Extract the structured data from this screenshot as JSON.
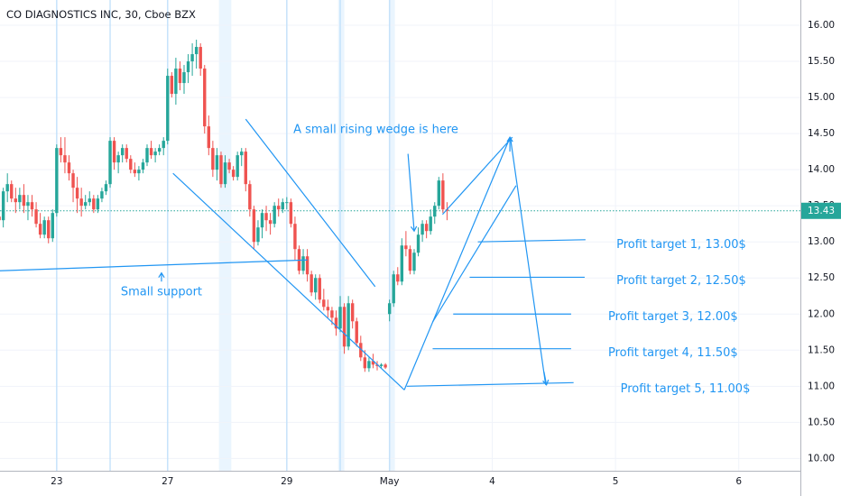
{
  "chart_data": {
    "type": "candlestick",
    "title": "CO DIAGNOSTICS INC, 30, Cboe BZX",
    "x_ticks": [
      {
        "label": "23",
        "bar": 14
      },
      {
        "label": "27",
        "bar": 41
      },
      {
        "label": "29",
        "bar": 70
      },
      {
        "label": "May",
        "bar": 95
      },
      {
        "label": "4",
        "bar": 120
      },
      {
        "label": "5",
        "bar": 150
      },
      {
        "label": "6",
        "bar": 180
      }
    ],
    "y_ticks": [
      10.0,
      10.5,
      11.0,
      11.5,
      12.0,
      12.5,
      13.0,
      13.5,
      14.0,
      14.5,
      15.0,
      15.5,
      16.0
    ],
    "ylim": [
      9.83,
      16.35
    ],
    "xlim": [
      0.2,
      195
    ],
    "grid": true,
    "session_breaks": [
      14,
      27,
      41,
      70,
      83,
      95
    ],
    "highlighted_bands": [
      [
        53.5,
        56.5
      ],
      [
        82.5,
        84
      ],
      [
        95,
        96.3
      ]
    ],
    "last_price": 13.43,
    "last_price_color": "#26a69a",
    "up_color": "#26a69a",
    "down_color": "#ef5350",
    "annotation_color": "#2196f3",
    "bars": [
      [
        13.35,
        13.42,
        13.25,
        13.3
      ],
      [
        13.3,
        13.75,
        13.2,
        13.7
      ],
      [
        13.7,
        13.95,
        13.55,
        13.8
      ],
      [
        13.8,
        13.85,
        13.55,
        13.6
      ],
      [
        13.6,
        13.75,
        13.4,
        13.55
      ],
      [
        13.55,
        13.75,
        13.45,
        13.65
      ],
      [
        13.65,
        13.8,
        13.4,
        13.5
      ],
      [
        13.5,
        13.65,
        13.3,
        13.55
      ],
      [
        13.55,
        13.65,
        13.35,
        13.45
      ],
      [
        13.45,
        13.55,
        13.2,
        13.25
      ],
      [
        13.25,
        13.4,
        13.05,
        13.1
      ],
      [
        13.1,
        13.35,
        13.05,
        13.3
      ],
      [
        13.3,
        13.35,
        12.98,
        13.05
      ],
      [
        13.05,
        13.45,
        13.0,
        13.4
      ],
      [
        13.4,
        14.35,
        13.35,
        14.3
      ],
      [
        14.3,
        14.45,
        14.1,
        14.2
      ],
      [
        14.2,
        14.45,
        13.95,
        14.1
      ],
      [
        14.1,
        14.2,
        13.85,
        13.95
      ],
      [
        13.95,
        14.0,
        13.55,
        13.75
      ],
      [
        13.75,
        13.9,
        13.4,
        13.6
      ],
      [
        13.6,
        13.75,
        13.35,
        13.5
      ],
      [
        13.5,
        13.65,
        13.45,
        13.55
      ],
      [
        13.55,
        13.7,
        13.5,
        13.6
      ],
      [
        13.6,
        13.65,
        13.4,
        13.45
      ],
      [
        13.45,
        13.65,
        13.4,
        13.6
      ],
      [
        13.6,
        13.75,
        13.55,
        13.7
      ],
      [
        13.7,
        13.85,
        13.65,
        13.8
      ],
      [
        13.8,
        14.45,
        13.75,
        14.4
      ],
      [
        14.4,
        14.45,
        14.0,
        14.1
      ],
      [
        14.1,
        14.25,
        13.95,
        14.2
      ],
      [
        14.2,
        14.35,
        14.1,
        14.3
      ],
      [
        14.3,
        14.35,
        14.1,
        14.15
      ],
      [
        14.15,
        14.2,
        13.95,
        14.0
      ],
      [
        14.0,
        14.1,
        13.9,
        13.95
      ],
      [
        13.95,
        14.05,
        13.85,
        14.0
      ],
      [
        14.0,
        14.15,
        13.95,
        14.1
      ],
      [
        14.1,
        14.35,
        14.05,
        14.3
      ],
      [
        14.3,
        14.4,
        14.15,
        14.2
      ],
      [
        14.2,
        14.3,
        14.1,
        14.25
      ],
      [
        14.25,
        14.35,
        14.2,
        14.3
      ],
      [
        14.3,
        14.45,
        14.2,
        14.4
      ],
      [
        14.4,
        15.4,
        14.35,
        15.3
      ],
      [
        15.3,
        15.35,
        15.0,
        15.05
      ],
      [
        15.05,
        15.55,
        14.9,
        15.4
      ],
      [
        15.4,
        15.5,
        15.1,
        15.2
      ],
      [
        15.2,
        15.45,
        15.05,
        15.35
      ],
      [
        15.35,
        15.6,
        15.2,
        15.5
      ],
      [
        15.5,
        15.75,
        15.3,
        15.6
      ],
      [
        15.6,
        15.8,
        15.4,
        15.7
      ],
      [
        15.7,
        15.75,
        15.3,
        15.4
      ],
      [
        15.4,
        15.45,
        14.5,
        14.6
      ],
      [
        14.6,
        14.75,
        14.2,
        14.3
      ],
      [
        14.3,
        14.4,
        13.9,
        14.0
      ],
      [
        14.0,
        14.3,
        13.85,
        14.2
      ],
      [
        14.2,
        14.25,
        13.75,
        13.8
      ],
      [
        13.8,
        14.2,
        13.75,
        14.1
      ],
      [
        14.1,
        14.15,
        13.95,
        14.0
      ],
      [
        14.0,
        14.05,
        13.85,
        13.9
      ],
      [
        13.9,
        14.25,
        13.85,
        14.2
      ],
      [
        14.2,
        14.3,
        14.05,
        14.25
      ],
      [
        14.25,
        14.3,
        13.7,
        13.8
      ],
      [
        13.8,
        13.85,
        13.35,
        13.45
      ],
      [
        13.45,
        13.5,
        12.9,
        13.0
      ],
      [
        13.0,
        13.3,
        12.95,
        13.2
      ],
      [
        13.2,
        13.45,
        13.05,
        13.4
      ],
      [
        13.4,
        13.5,
        13.15,
        13.3
      ],
      [
        13.3,
        13.4,
        13.1,
        13.25
      ],
      [
        13.25,
        13.55,
        13.2,
        13.5
      ],
      [
        13.5,
        13.6,
        13.35,
        13.45
      ],
      [
        13.45,
        13.6,
        13.4,
        13.55
      ],
      [
        13.55,
        13.62,
        13.45,
        13.55
      ],
      [
        13.55,
        13.6,
        13.2,
        13.25
      ],
      [
        13.25,
        13.35,
        12.75,
        12.9
      ],
      [
        12.9,
        12.95,
        12.55,
        12.6
      ],
      [
        12.6,
        12.9,
        12.55,
        12.8
      ],
      [
        12.8,
        12.9,
        12.45,
        12.55
      ],
      [
        12.55,
        12.6,
        12.25,
        12.3
      ],
      [
        12.3,
        12.55,
        12.2,
        12.5
      ],
      [
        12.5,
        12.55,
        12.15,
        12.2
      ],
      [
        12.2,
        12.35,
        12.05,
        12.1
      ],
      [
        12.1,
        12.2,
        11.95,
        12.05
      ],
      [
        12.05,
        12.1,
        11.85,
        11.95
      ],
      [
        11.95,
        12.05,
        11.7,
        11.8
      ],
      [
        11.8,
        12.25,
        11.75,
        12.1
      ],
      [
        12.1,
        12.15,
        11.45,
        11.55
      ],
      [
        11.55,
        12.25,
        11.5,
        12.15
      ],
      [
        12.15,
        12.2,
        11.8,
        11.9
      ],
      [
        11.9,
        11.95,
        11.55,
        11.6
      ],
      [
        11.6,
        11.7,
        11.35,
        11.4
      ],
      [
        11.4,
        11.5,
        11.2,
        11.25
      ],
      [
        11.25,
        11.4,
        11.2,
        11.35
      ],
      [
        11.35,
        11.45,
        11.25,
        11.3
      ],
      [
        11.3,
        11.35,
        11.22,
        11.28
      ],
      [
        11.28,
        11.32,
        11.25,
        11.3
      ],
      [
        11.3,
        11.32,
        11.24,
        11.26
      ],
      [
        12.0,
        12.2,
        11.9,
        12.15
      ],
      [
        12.15,
        12.6,
        12.1,
        12.55
      ],
      [
        12.55,
        12.65,
        12.4,
        12.45
      ],
      [
        12.45,
        13.05,
        12.4,
        12.95
      ],
      [
        12.95,
        13.15,
        12.8,
        12.9
      ],
      [
        12.9,
        12.95,
        12.55,
        12.6
      ],
      [
        12.6,
        12.9,
        12.55,
        12.85
      ],
      [
        12.85,
        13.2,
        12.8,
        13.1
      ],
      [
        13.1,
        13.3,
        13.0,
        13.25
      ],
      [
        13.25,
        13.3,
        13.05,
        13.15
      ],
      [
        13.15,
        13.45,
        13.1,
        13.35
      ],
      [
        13.35,
        13.55,
        13.25,
        13.5
      ],
      [
        13.5,
        13.9,
        13.45,
        13.85
      ],
      [
        13.85,
        13.95,
        13.4,
        13.45
      ],
      [
        13.45,
        13.55,
        13.3,
        13.43
      ]
    ],
    "annotations": [
      {
        "text": "A small rising wedge is here",
        "value": 14.55,
        "bar": 71.6,
        "align": "start"
      },
      {
        "text": "Small support",
        "value": 12.3,
        "bar": 39.5,
        "align": "middle"
      },
      {
        "text": "Profit target 1, 13.00$",
        "value": 12.96,
        "bar": 166,
        "align": "middle"
      },
      {
        "text": "Profit target 2, 12.50$",
        "value": 12.46,
        "bar": 166,
        "align": "middle"
      },
      {
        "text": "Profit target 3, 12.00$",
        "value": 11.96,
        "bar": 164,
        "align": "middle"
      },
      {
        "text": "Profit target 4, 11.50$",
        "value": 11.46,
        "bar": 164,
        "align": "middle"
      },
      {
        "text": "Profit target 5, 11.00$",
        "value": 10.96,
        "bar": 167,
        "align": "middle"
      }
    ],
    "drawings": [
      {
        "name": "support-line",
        "points": [
          [
            0.2,
            12.6
          ],
          [
            75,
            12.75
          ]
        ]
      },
      {
        "name": "channel-upper-left",
        "points": [
          [
            60,
            14.7
          ],
          [
            91.5,
            12.38
          ]
        ]
      },
      {
        "name": "channel-lower-left",
        "points": [
          [
            42.3,
            13.95
          ],
          [
            98.6,
            10.95
          ]
        ]
      },
      {
        "name": "wedge-outer",
        "points": [
          [
            98.6,
            10.95
          ],
          [
            124.2,
            14.43
          ]
        ]
      },
      {
        "name": "wedge-inner-lower",
        "points": [
          [
            105.5,
            11.89
          ],
          [
            125.8,
            13.78
          ]
        ]
      },
      {
        "name": "wedge-inner-upper",
        "points": [
          [
            107.9,
            13.38
          ],
          [
            124.9,
            14.45
          ]
        ]
      },
      {
        "name": "target-1-line",
        "points": [
          [
            116.5,
            13.0
          ],
          [
            142.7,
            13.03
          ]
        ]
      },
      {
        "name": "target-2-line",
        "points": [
          [
            114.5,
            12.51
          ],
          [
            142.5,
            12.51
          ]
        ]
      },
      {
        "name": "target-3-line",
        "points": [
          [
            110.5,
            12.0
          ],
          [
            139.2,
            12.0
          ]
        ]
      },
      {
        "name": "target-4-line",
        "points": [
          [
            105.5,
            11.52
          ],
          [
            139.2,
            11.52
          ]
        ]
      },
      {
        "name": "target-5-line",
        "points": [
          [
            99.2,
            11.0
          ],
          [
            139.8,
            11.05
          ]
        ]
      },
      {
        "name": "projection-down",
        "points": [
          [
            124.4,
            14.45
          ],
          [
            133.0,
            11.02
          ]
        ]
      }
    ],
    "arrows": [
      {
        "name": "wedge-label-arrow",
        "from": [
          99.5,
          14.22
        ],
        "to": [
          101.0,
          13.15
        ]
      },
      {
        "name": "support-label-arrow",
        "from": [
          39.5,
          12.45
        ],
        "to": [
          39.5,
          12.57
        ]
      },
      {
        "name": "projection-top-arrow",
        "from": [
          124.3,
          14.25
        ],
        "to": [
          124.3,
          14.45
        ]
      },
      {
        "name": "projection-bottom-arrow",
        "from": [
          132.6,
          11.2
        ],
        "to": [
          133.2,
          11.02
        ]
      }
    ]
  }
}
